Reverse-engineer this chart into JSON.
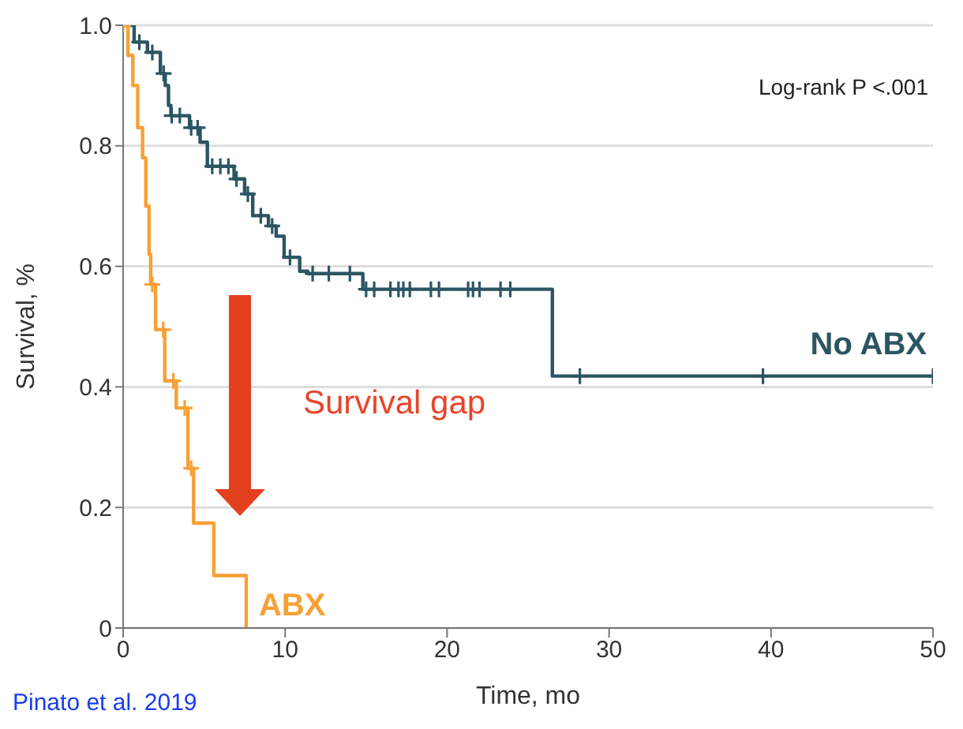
{
  "chart_data": {
    "type": "step",
    "xlabel": "Time, mo",
    "ylabel": "Survival, %",
    "xlim": [
      0,
      50
    ],
    "xticks": [
      0,
      10,
      20,
      30,
      40,
      50
    ],
    "ylim": [
      0,
      1
    ],
    "yticks": [
      0,
      0.2,
      0.4,
      0.6,
      0.8,
      {
        "value": 1,
        "label": "1.0"
      }
    ],
    "grid": "y",
    "line_style": "solid",
    "annotations": [
      "Log-rank P <.001",
      "Survival gap",
      "Pinato et al. 2019"
    ],
    "series": [
      {
        "name": "No ABX",
        "color": "#2b5563",
        "x": [
          0,
          0.68,
          1.5,
          2.3,
          2.6,
          2.8,
          2.95,
          4.1,
          4.75,
          5.2,
          6.85,
          7.5,
          8.0,
          8.97,
          9.45,
          9.94,
          10.9,
          11.4,
          14.8,
          26.5,
          50
        ],
        "values": [
          1,
          0.972,
          0.955,
          0.92,
          0.9,
          0.867,
          0.85,
          0.83,
          0.806,
          0.766,
          0.745,
          0.72,
          0.684,
          0.667,
          0.65,
          0.615,
          0.592,
          0.588,
          0.562,
          0.418,
          0.418
        ]
      },
      {
        "name": "ABX",
        "color": "#f7a035",
        "x": [
          0,
          0.3,
          0.6,
          0.9,
          1.2,
          1.4,
          1.6,
          1.7,
          2.0,
          2.57,
          3.28,
          4.0,
          4.35,
          5.6,
          7.6
        ],
        "values": [
          1,
          0.95,
          0.9,
          0.83,
          0.78,
          0.7,
          0.62,
          0.57,
          0.495,
          0.41,
          0.365,
          0.265,
          0.174,
          0.087,
          0
        ]
      },
      {
        "type": "scatter",
        "marker": "cross",
        "color": "#2b5563",
        "x": [
          1,
          1.8,
          2.5,
          3,
          3.5,
          4.2,
          4.6,
          5.5,
          6,
          6.5,
          7,
          7.7,
          8.5,
          9.2,
          10.3,
          11.7,
          12.7,
          14,
          15,
          15.5,
          16.5,
          17,
          17.3,
          17.7,
          19,
          19.5,
          21.3,
          21.6,
          22,
          23.3,
          23.9,
          28.2,
          39.5,
          50
        ],
        "values": [
          0.972,
          0.955,
          0.92,
          0.85,
          0.85,
          0.83,
          0.83,
          0.766,
          0.766,
          0.766,
          0.745,
          0.72,
          0.684,
          0.667,
          0.615,
          0.588,
          0.588,
          0.588,
          0.562,
          0.562,
          0.562,
          0.562,
          0.562,
          0.562,
          0.562,
          0.562,
          0.562,
          0.562,
          0.562,
          0.562,
          0.562,
          0.418,
          0.418,
          0.418
        ]
      },
      {
        "type": "scatter",
        "marker": "cross",
        "color": "#f7a035",
        "x": [
          0,
          1.8,
          2.47,
          3.1,
          3.8,
          4.2
        ],
        "values": [
          1,
          0.57,
          0.495,
          0.41,
          0.365,
          0.265
        ]
      }
    ]
  }
}
